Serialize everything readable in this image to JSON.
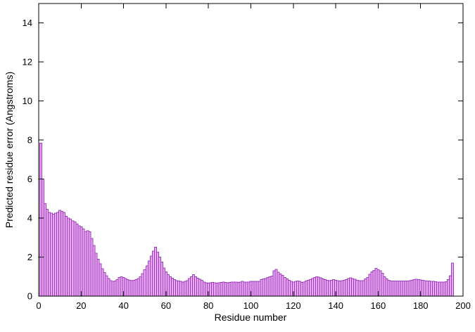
{
  "chart_data": {
    "type": "bar",
    "title": "",
    "xlabel": "Residue number",
    "ylabel": "Predicted residue error (Angstroms)",
    "xlim": [
      0,
      200
    ],
    "ylim": [
      0,
      15
    ],
    "x_ticks": [
      0,
      20,
      40,
      60,
      80,
      100,
      120,
      140,
      160,
      180,
      200
    ],
    "y_ticks": [
      0,
      2,
      4,
      6,
      8,
      10,
      12,
      14
    ],
    "legend": "none",
    "grid": "off",
    "bar_fill": "#e9a9f0",
    "bar_stroke": "#9d3cbf",
    "axis_color": "#000000",
    "x_start_residue": 1,
    "values": [
      7.85,
      6.0,
      4.75,
      4.45,
      4.3,
      4.25,
      4.2,
      4.25,
      4.3,
      4.4,
      4.35,
      4.3,
      4.1,
      4.0,
      3.95,
      3.85,
      3.8,
      3.7,
      3.6,
      3.55,
      3.45,
      3.3,
      3.35,
      3.3,
      2.95,
      2.6,
      2.2,
      1.9,
      1.65,
      1.4,
      1.2,
      1.05,
      0.9,
      0.8,
      0.75,
      0.78,
      0.85,
      0.95,
      1.0,
      0.95,
      0.9,
      0.85,
      0.82,
      0.8,
      0.82,
      0.85,
      0.9,
      1.0,
      1.15,
      1.35,
      1.55,
      1.8,
      2.05,
      2.3,
      2.5,
      2.25,
      2.0,
      1.75,
      1.45,
      1.25,
      1.1,
      1.0,
      0.92,
      0.85,
      0.8,
      0.78,
      0.75,
      0.73,
      0.75,
      0.8,
      0.9,
      1.0,
      1.1,
      1.0,
      0.92,
      0.87,
      0.82,
      0.72,
      0.68,
      0.67,
      0.68,
      0.7,
      0.68,
      0.67,
      0.68,
      0.7,
      0.72,
      0.7,
      0.68,
      0.7,
      0.72,
      0.73,
      0.72,
      0.7,
      0.72,
      0.75,
      0.73,
      0.72,
      0.73,
      0.75,
      0.76,
      0.76,
      0.75,
      0.76,
      0.84,
      0.88,
      0.91,
      0.96,
      1.0,
      1.03,
      1.3,
      1.37,
      1.22,
      1.14,
      1.06,
      0.96,
      0.88,
      0.82,
      0.76,
      0.72,
      0.76,
      0.78,
      0.76,
      0.7,
      0.73,
      0.78,
      0.81,
      0.85,
      0.9,
      0.95,
      1.0,
      0.97,
      0.93,
      0.88,
      0.85,
      0.82,
      0.8,
      0.82,
      0.85,
      0.82,
      0.8,
      0.78,
      0.8,
      0.82,
      0.85,
      0.9,
      0.93,
      0.9,
      0.87,
      0.82,
      0.79,
      0.79,
      0.8,
      0.88,
      0.96,
      1.12,
      1.24,
      1.32,
      1.42,
      1.36,
      1.3,
      1.18,
      1.0,
      0.88,
      0.82,
      0.78,
      0.77,
      0.77,
      0.78,
      0.78,
      0.77,
      0.77,
      0.78,
      0.78,
      0.8,
      0.82,
      0.85,
      0.87,
      0.85,
      0.83,
      0.82,
      0.8,
      0.78,
      0.77,
      0.76,
      0.75,
      0.74,
      0.73,
      0.72,
      0.73,
      0.73,
      0.74,
      0.85,
      1.05,
      1.7
    ]
  }
}
